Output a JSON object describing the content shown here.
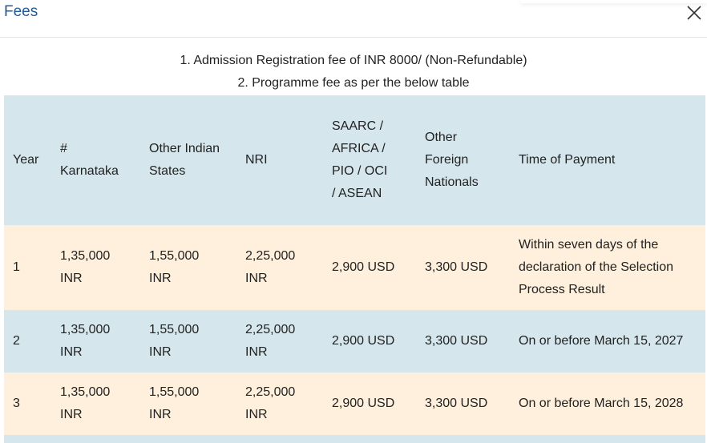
{
  "dialog": {
    "title": "Fees",
    "close_icon": "close-icon"
  },
  "notes": [
    "1. Admission Registration fee of INR 8000/ (Non-Refundable)",
    "2. Programme fee as per the below table"
  ],
  "table": {
    "headers": [
      "Year",
      "# Karnataka",
      "Other Indian States",
      "NRI",
      "SAARC / AFRICA / PIO / OCI / ASEAN",
      "Other Foreign Nationals",
      "Time of Payment"
    ],
    "rows": [
      [
        "1",
        "1,35,000 INR",
        "1,55,000 INR",
        "2,25,000 INR",
        "2,900 USD",
        "3,300 USD",
        "Within seven days of the declaration of the Selection Process Result"
      ],
      [
        "2",
        "1,35,000 INR",
        "1,55,000 INR",
        "2,25,000 INR",
        "2,900 USD",
        "3,300 USD",
        "On or before March 15, 2027"
      ],
      [
        "3",
        "1,35,000 INR",
        "1,55,000 INR",
        "2,25,000 INR",
        "2,900 USD",
        "3,300 USD",
        "On or before March 15, 2028"
      ]
    ]
  },
  "colors": {
    "title": "#1f5b9a",
    "row_blue": "#d5e6ec",
    "row_cream": "#fef0dc"
  }
}
